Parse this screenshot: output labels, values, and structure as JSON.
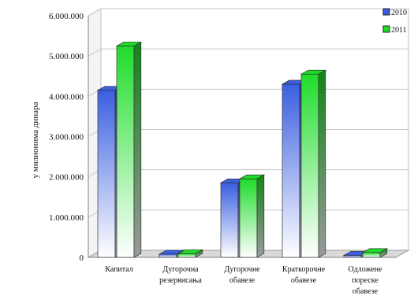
{
  "chart_data": {
    "type": "bar",
    "title": "",
    "xlabel": "",
    "ylabel": "у милионима динара",
    "categories": [
      [
        "Капитал"
      ],
      [
        "Дугорочна",
        "резервисања"
      ],
      [
        "Дугорочне",
        "обавезе"
      ],
      [
        "Краткорочне",
        "обавезе"
      ],
      [
        "Одложене",
        "пореске",
        "обавезе"
      ]
    ],
    "ylim": [
      0,
      6000000
    ],
    "yticks": [
      0,
      1000000,
      2000000,
      3000000,
      4000000,
      5000000,
      6000000
    ],
    "ytick_labels": [
      "0",
      "1.000.000",
      "2.000.000",
      "3.000.000",
      "4.000.000",
      "5.000.000",
      "6.000.000"
    ],
    "grid": true,
    "legend_position": "top-right",
    "series": [
      {
        "name": "2010",
        "values": [
          4150000,
          80000,
          1850000,
          4300000,
          50000
        ],
        "color": "#3a5fe0",
        "colorLight": "#ffffff"
      },
      {
        "name": "2011",
        "values": [
          5250000,
          90000,
          1950000,
          4550000,
          120000
        ],
        "color": "#1fdc2a",
        "colorLight": "#ffffff"
      }
    ]
  }
}
